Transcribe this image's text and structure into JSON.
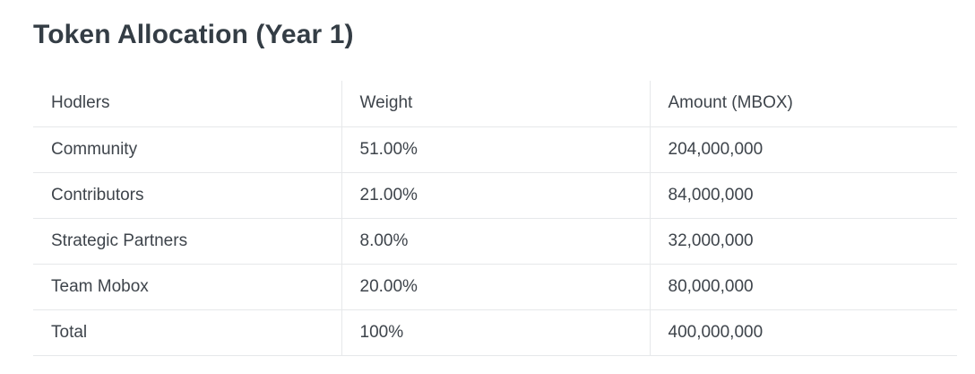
{
  "title": "Token Allocation (Year 1)",
  "table": {
    "headers": [
      "Hodlers",
      "Weight",
      "Amount (MBOX)"
    ],
    "rows": [
      [
        "Community",
        "51.00%",
        "204,000,000"
      ],
      [
        "Contributors",
        "21.00%",
        "84,000,000"
      ],
      [
        "Strategic Partners",
        "8.00%",
        "32,000,000"
      ],
      [
        "Team Mobox",
        "20.00%",
        "80,000,000"
      ],
      [
        "Total",
        "100%",
        "400,000,000"
      ]
    ]
  }
}
